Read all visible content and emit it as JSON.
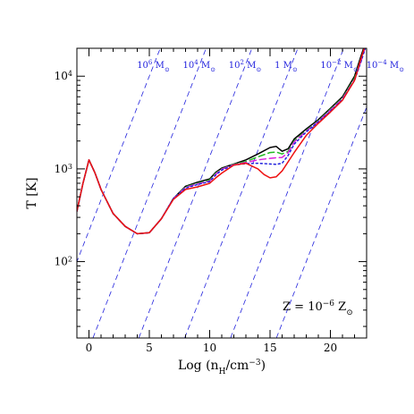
{
  "chart_data": {
    "type": "line",
    "title": "",
    "xlabel": "Log (n_H/cm^-3)",
    "ylabel": "T [K]",
    "xlim": [
      -1,
      23
    ],
    "ylim": [
      15,
      20000
    ],
    "yscale": "log",
    "grid": false,
    "legend": "none",
    "x_ticks": [
      {
        "value": 0,
        "label": "0"
      },
      {
        "value": 5,
        "label": "5"
      },
      {
        "value": 10,
        "label": "10"
      },
      {
        "value": 15,
        "label": "15"
      },
      {
        "value": 20,
        "label": "20"
      }
    ],
    "y_ticks": [
      {
        "value": 100,
        "base": "10",
        "exp": "2"
      },
      {
        "value": 1000,
        "base": "10",
        "exp": "3"
      },
      {
        "value": 10000,
        "base": "10",
        "exp": "4"
      }
    ],
    "annotation": {
      "text_main": "Z = 10",
      "text_exp": "−6",
      "text_unit": " Z",
      "text_sub": "⊙"
    },
    "jeans_mass_lines": {
      "color": "#2222dd",
      "style": "dashed",
      "slope_dlogT_dx": 0.3333,
      "lines": [
        {
          "label_base": "10",
          "label_exp": "6",
          "label_unit": " M",
          "label_sub": "⊙",
          "x_at_T_100": -1.0
        },
        {
          "label_base": "10",
          "label_exp": "4",
          "label_unit": " M",
          "label_sub": "⊙",
          "x_at_T_100": 2.8
        },
        {
          "label_base": "10",
          "label_exp": "2",
          "label_unit": " M",
          "label_sub": "⊙",
          "x_at_T_100": 6.6
        },
        {
          "label_base": "1",
          "label_exp": "",
          "label_unit": " M",
          "label_sub": "⊙",
          "x_at_T_100": 10.4
        },
        {
          "label_base": "10",
          "label_exp": "−2",
          "label_unit": " M",
          "label_sub": "⊙",
          "x_at_T_100": 14.2
        },
        {
          "label_base": "10",
          "label_exp": "−4",
          "label_unit": " M",
          "label_sub": "⊙",
          "x_at_T_100": 18.0
        }
      ]
    },
    "series": [
      {
        "color": "#000000",
        "style": "solid",
        "points": [
          [
            -1,
            350
          ],
          [
            -0.5,
            700
          ],
          [
            0,
            1250
          ],
          [
            0.5,
            900
          ],
          [
            1,
            600
          ],
          [
            2,
            330
          ],
          [
            3,
            240
          ],
          [
            4,
            200
          ],
          [
            5,
            205
          ],
          [
            6,
            290
          ],
          [
            7,
            480
          ],
          [
            8,
            650
          ],
          [
            9,
            720
          ],
          [
            10,
            780
          ],
          [
            10.5,
            920
          ],
          [
            11,
            1020
          ],
          [
            12,
            1130
          ],
          [
            13,
            1250
          ],
          [
            14,
            1450
          ],
          [
            15,
            1700
          ],
          [
            15.5,
            1750
          ],
          [
            16,
            1550
          ],
          [
            16.5,
            1650
          ],
          [
            17,
            2100
          ],
          [
            18,
            2700
          ],
          [
            19,
            3400
          ],
          [
            20,
            4500
          ],
          [
            21,
            6000
          ],
          [
            22,
            10000
          ],
          [
            22.5,
            16000
          ],
          [
            23,
            25000
          ]
        ]
      },
      {
        "color": "#22bb22",
        "style": "dashed",
        "points": [
          [
            -1,
            350
          ],
          [
            -0.5,
            700
          ],
          [
            0,
            1250
          ],
          [
            0.5,
            900
          ],
          [
            1,
            600
          ],
          [
            2,
            330
          ],
          [
            3,
            240
          ],
          [
            4,
            200
          ],
          [
            5,
            205
          ],
          [
            6,
            290
          ],
          [
            7,
            480
          ],
          [
            8,
            640
          ],
          [
            9,
            700
          ],
          [
            10,
            760
          ],
          [
            10.5,
            900
          ],
          [
            11,
            1000
          ],
          [
            12,
            1120
          ],
          [
            13,
            1200
          ],
          [
            14,
            1350
          ],
          [
            15,
            1500
          ],
          [
            15.5,
            1520
          ],
          [
            16,
            1450
          ],
          [
            16.5,
            1550
          ],
          [
            17,
            2000
          ],
          [
            18,
            2600
          ],
          [
            19,
            3300
          ],
          [
            20,
            4400
          ],
          [
            21,
            5800
          ],
          [
            22,
            9500
          ],
          [
            22.5,
            15000
          ],
          [
            23,
            24000
          ]
        ]
      },
      {
        "color": "#dd22dd",
        "style": "dashed",
        "points": [
          [
            -1,
            350
          ],
          [
            -0.5,
            700
          ],
          [
            0,
            1250
          ],
          [
            0.5,
            900
          ],
          [
            1,
            600
          ],
          [
            2,
            330
          ],
          [
            3,
            240
          ],
          [
            4,
            200
          ],
          [
            5,
            205
          ],
          [
            6,
            290
          ],
          [
            7,
            480
          ],
          [
            8,
            630
          ],
          [
            9,
            690
          ],
          [
            10,
            740
          ],
          [
            10.5,
            880
          ],
          [
            11,
            990
          ],
          [
            12,
            1110
          ],
          [
            13,
            1170
          ],
          [
            14,
            1250
          ],
          [
            15,
            1300
          ],
          [
            15.5,
            1320
          ],
          [
            16,
            1330
          ],
          [
            16.5,
            1500
          ],
          [
            17,
            1950
          ],
          [
            18,
            2550
          ],
          [
            19,
            3250
          ],
          [
            20,
            4300
          ],
          [
            21,
            5700
          ],
          [
            22,
            9200
          ],
          [
            22.5,
            14000
          ],
          [
            23,
            23000
          ]
        ]
      },
      {
        "color": "#2222dd",
        "style": "dotted",
        "points": [
          [
            -1,
            350
          ],
          [
            -0.5,
            700
          ],
          [
            0,
            1250
          ],
          [
            0.5,
            900
          ],
          [
            1,
            600
          ],
          [
            2,
            330
          ],
          [
            3,
            240
          ],
          [
            4,
            200
          ],
          [
            5,
            205
          ],
          [
            6,
            290
          ],
          [
            7,
            480
          ],
          [
            8,
            620
          ],
          [
            9,
            680
          ],
          [
            10,
            730
          ],
          [
            10.5,
            860
          ],
          [
            11,
            970
          ],
          [
            12,
            1100
          ],
          [
            13,
            1140
          ],
          [
            14,
            1150
          ],
          [
            15,
            1130
          ],
          [
            15.5,
            1120
          ],
          [
            16,
            1150
          ],
          [
            16.5,
            1400
          ],
          [
            17,
            1850
          ],
          [
            18,
            2500
          ],
          [
            19,
            3200
          ],
          [
            20,
            4200
          ],
          [
            21,
            5600
          ],
          [
            22,
            9000
          ],
          [
            22.5,
            14000
          ],
          [
            23,
            22000
          ]
        ]
      },
      {
        "color": "#ee1111",
        "style": "solid",
        "points": [
          [
            -1,
            350
          ],
          [
            -0.5,
            700
          ],
          [
            0,
            1250
          ],
          [
            0.5,
            900
          ],
          [
            1,
            600
          ],
          [
            2,
            330
          ],
          [
            3,
            240
          ],
          [
            4,
            200
          ],
          [
            5,
            205
          ],
          [
            6,
            290
          ],
          [
            7,
            470
          ],
          [
            8,
            600
          ],
          [
            9,
            640
          ],
          [
            10,
            700
          ],
          [
            10.5,
            800
          ],
          [
            11,
            900
          ],
          [
            12,
            1100
          ],
          [
            13,
            1150
          ],
          [
            14,
            1000
          ],
          [
            14.5,
            870
          ],
          [
            15,
            800
          ],
          [
            15.5,
            820
          ],
          [
            16,
            950
          ],
          [
            17,
            1500
          ],
          [
            18,
            2300
          ],
          [
            19,
            3100
          ],
          [
            20,
            4100
          ],
          [
            21,
            5500
          ],
          [
            22,
            9000
          ],
          [
            22.5,
            15000
          ],
          [
            23,
            24000
          ]
        ]
      }
    ]
  }
}
